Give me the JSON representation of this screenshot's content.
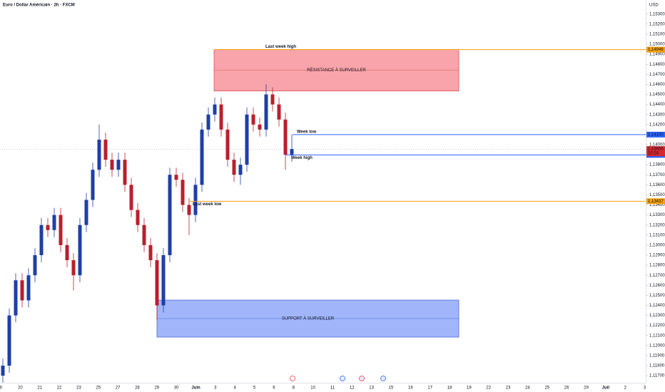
{
  "chart_data": {
    "type": "candlestick",
    "title": "Euro / Dollar Américain · 2h · FXCM",
    "currency": "USD",
    "x_labels": [
      "9",
      "20",
      "21",
      "22",
      "23",
      "25",
      "27",
      "28",
      "29",
      "30",
      "Juin",
      "3",
      "4",
      "5",
      "6",
      "8",
      "10",
      "11",
      "12",
      "13",
      "15",
      "16",
      "17",
      "18",
      "19",
      "22",
      "23",
      "24",
      "25",
      "26",
      "29",
      "Juil",
      "2",
      "3"
    ],
    "ylim": [
      1.1163,
      1.1544
    ],
    "yticks": [
      {
        "value": 1.117,
        "label": "1,11700"
      },
      {
        "value": 1.118,
        "label": "1,11800"
      },
      {
        "value": 1.119,
        "label": "1,11900"
      },
      {
        "value": 1.12,
        "label": "1,12000"
      },
      {
        "value": 1.121,
        "label": "1,12100"
      },
      {
        "value": 1.122,
        "label": "1,12200"
      },
      {
        "value": 1.123,
        "label": "1,12300"
      },
      {
        "value": 1.124,
        "label": "1,12400"
      },
      {
        "value": 1.125,
        "label": "1,12500"
      },
      {
        "value": 1.126,
        "label": "1,12600"
      },
      {
        "value": 1.127,
        "label": "1,12700"
      },
      {
        "value": 1.128,
        "label": "1,12800"
      },
      {
        "value": 1.129,
        "label": "1,12900"
      },
      {
        "value": 1.13,
        "label": "1,13000"
      },
      {
        "value": 1.131,
        "label": "1,13100"
      },
      {
        "value": 1.132,
        "label": "1,13200"
      },
      {
        "value": 1.133,
        "label": "1,13300"
      },
      {
        "value": 1.134,
        "label": "1,13400"
      },
      {
        "value": 1.135,
        "label": "1,13500"
      },
      {
        "value": 1.136,
        "label": "1,13600"
      },
      {
        "value": 1.137,
        "label": "1,13700"
      },
      {
        "value": 1.138,
        "label": "1,13800"
      },
      {
        "value": 1.139,
        "label": "1,13900"
      },
      {
        "value": 1.14,
        "label": "1,14000"
      },
      {
        "value": 1.141,
        "label": "1,14100"
      },
      {
        "value": 1.142,
        "label": "1,14200"
      },
      {
        "value": 1.143,
        "label": "1,14300"
      },
      {
        "value": 1.144,
        "label": "1,14400"
      },
      {
        "value": 1.145,
        "label": "1,14500"
      },
      {
        "value": 1.146,
        "label": "1,14600"
      },
      {
        "value": 1.147,
        "label": "1,14700"
      },
      {
        "value": 1.148,
        "label": "1,14800"
      },
      {
        "value": 1.149,
        "label": "1,14900"
      },
      {
        "value": 1.15,
        "label": "1,15000"
      },
      {
        "value": 1.151,
        "label": "1,15100"
      },
      {
        "value": 1.152,
        "label": "1,15200"
      },
      {
        "value": 1.153,
        "label": "1,15300"
      }
    ],
    "candles": {
      "open": [
        1.117,
        1.118,
        1.123,
        1.1265,
        1.1245,
        1.127,
        1.129,
        1.132,
        1.1315,
        1.133,
        1.13,
        1.1285,
        1.127,
        1.132,
        1.1345,
        1.1375,
        1.1405,
        1.1385,
        1.1375,
        1.1385,
        1.136,
        1.1335,
        1.132,
        1.13,
        1.1285,
        1.124,
        1.129,
        1.137,
        1.1365,
        1.134,
        1.133,
        1.136,
        1.1415,
        1.143,
        1.144,
        1.1415,
        1.1385,
        1.137,
        1.138,
        1.143,
        1.142,
        1.1415,
        1.145,
        1.144,
        1.1425,
        1.139
      ],
      "high": [
        1.1187,
        1.1237,
        1.1272,
        1.1272,
        1.1277,
        1.1297,
        1.1327,
        1.1327,
        1.1337,
        1.1337,
        1.1307,
        1.1292,
        1.1327,
        1.1352,
        1.1382,
        1.142,
        1.1412,
        1.1392,
        1.1392,
        1.1392,
        1.1367,
        1.1342,
        1.1327,
        1.1307,
        1.1292,
        1.1297,
        1.1377,
        1.1377,
        1.1372,
        1.1347,
        1.1367,
        1.1422,
        1.1437,
        1.1447,
        1.1447,
        1.1422,
        1.1392,
        1.1387,
        1.1437,
        1.1437,
        1.1427,
        1.146,
        1.1457,
        1.1447,
        1.1432,
        1.141
      ],
      "low": [
        1.1163,
        1.1173,
        1.1223,
        1.1238,
        1.1238,
        1.1263,
        1.1283,
        1.1308,
        1.1308,
        1.1293,
        1.1278,
        1.1255,
        1.1263,
        1.1313,
        1.1338,
        1.1368,
        1.1378,
        1.1368,
        1.1368,
        1.1353,
        1.1328,
        1.1313,
        1.1293,
        1.1278,
        1.1225,
        1.1233,
        1.1283,
        1.1358,
        1.1333,
        1.131,
        1.1323,
        1.1353,
        1.1408,
        1.1423,
        1.1408,
        1.1378,
        1.1363,
        1.136,
        1.1373,
        1.1413,
        1.1408,
        1.1408,
        1.1433,
        1.1418,
        1.1375,
        1.1383
      ],
      "close": [
        1.118,
        1.123,
        1.1265,
        1.1245,
        1.127,
        1.129,
        1.132,
        1.1315,
        1.133,
        1.13,
        1.1285,
        1.127,
        1.132,
        1.1345,
        1.1375,
        1.1405,
        1.1385,
        1.1375,
        1.1385,
        1.136,
        1.1335,
        1.132,
        1.13,
        1.1285,
        1.124,
        1.129,
        1.137,
        1.1365,
        1.134,
        1.133,
        1.136,
        1.1415,
        1.143,
        1.144,
        1.1415,
        1.1385,
        1.137,
        1.138,
        1.143,
        1.142,
        1.1415,
        1.145,
        1.144,
        1.1425,
        1.139,
        1.13956
      ]
    },
    "up_color": "#1f3fa6",
    "down_color": "#b8202e",
    "levels": [
      {
        "name": "Last week high",
        "value": 1.14946,
        "label": "1,14946",
        "color": "#f59f0b"
      },
      {
        "name": "Week low",
        "value": 1.141,
        "label": "1,14100",
        "color": "#2962ff"
      },
      {
        "name": "Week high",
        "value": 1.13898,
        "label": "1,13898",
        "color": "#2962ff"
      },
      {
        "name": "Last week low",
        "value": 1.13437,
        "label": "1,13437",
        "color": "#f59f0b"
      }
    ],
    "zones": [
      {
        "name": "RÉSISTANCE À SURVEILLER",
        "top": 1.14946,
        "bottom": 1.14534,
        "color": "#f7949b"
      },
      {
        "name": "SUPPORT À SURVEILLER",
        "top": 1.12453,
        "bottom": 1.12084,
        "color": "#91a9f9"
      }
    ],
    "last_price": {
      "value": 1.13956,
      "label": "1,13956",
      "countdown": "10:24",
      "color": "#d7262f"
    }
  }
}
